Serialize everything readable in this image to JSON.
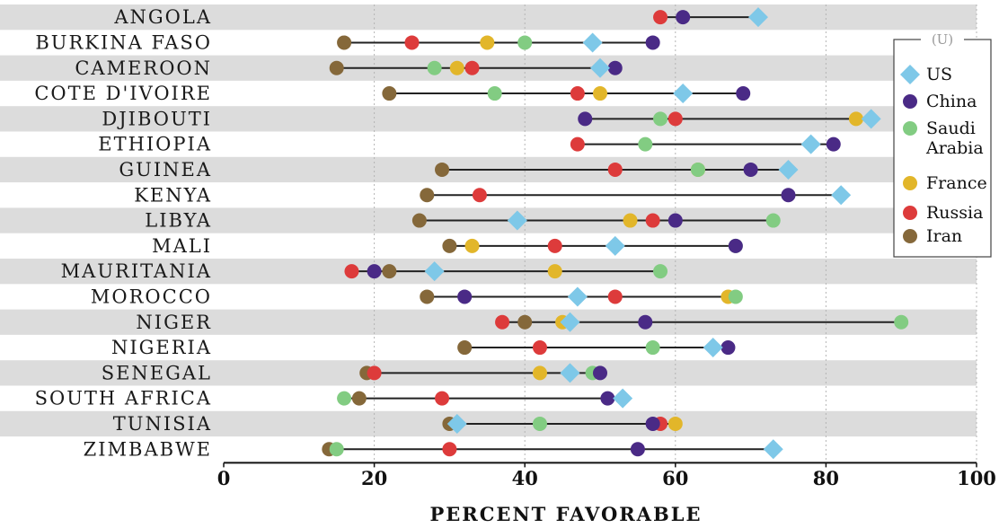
{
  "chart_data": {
    "type": "dot-range",
    "xlabel": "PERCENT FAVORABLE",
    "xlim": [
      0,
      100
    ],
    "xticks": [
      0,
      20,
      40,
      60,
      80,
      100
    ],
    "grid": "vertical dotted",
    "legend_title": "(U)",
    "legend_placement": "right",
    "categories": [
      "ANGOLA",
      "BURKINA FASO",
      "CAMEROON",
      "COTE D'IVOIRE",
      "DJIBOUTI",
      "ETHIOPIA",
      "GUINEA",
      "KENYA",
      "LIBYA",
      "MALI",
      "MAURITANIA",
      "MOROCCO",
      "NIGER",
      "NIGERIA",
      "SENEGAL",
      "SOUTH AFRICA",
      "TUNISIA",
      "ZIMBABWE"
    ],
    "series": [
      {
        "name": "US",
        "label": "US",
        "color": "#7ec8e8",
        "marker": "diamond",
        "values": [
          71,
          49,
          50,
          61,
          86,
          78,
          75,
          82,
          39,
          52,
          28,
          47,
          46,
          65,
          46,
          53,
          31,
          73
        ]
      },
      {
        "name": "China",
        "label": "China",
        "color": "#4a2a86",
        "marker": "circle",
        "values": [
          61,
          57,
          52,
          69,
          48,
          81,
          70,
          75,
          60,
          68,
          20,
          32,
          56,
          67,
          50,
          51,
          57,
          55
        ]
      },
      {
        "name": "Saudi Arabia",
        "label": [
          "Saudi",
          "Arabia"
        ],
        "color": "#82cc82",
        "marker": "circle",
        "values": [
          null,
          40,
          28,
          36,
          58,
          56,
          63,
          null,
          73,
          68,
          58,
          68,
          90,
          57,
          49,
          16,
          42,
          15
        ]
      },
      {
        "name": "France",
        "label": "France",
        "color": "#e2b62a",
        "marker": "circle",
        "values": [
          null,
          35,
          31,
          50,
          84,
          null,
          63,
          null,
          54,
          33,
          44,
          67,
          45,
          null,
          42,
          null,
          60,
          null
        ]
      },
      {
        "name": "Russia",
        "label": "Russia",
        "color": "#dd3b3b",
        "marker": "circle",
        "values": [
          58,
          25,
          33,
          47,
          60,
          47,
          52,
          34,
          57,
          44,
          17,
          52,
          37,
          42,
          20,
          29,
          58,
          30
        ]
      },
      {
        "name": "Iran",
        "label": "Iran",
        "color": "#85683a",
        "marker": "circle",
        "values": [
          null,
          16,
          15,
          22,
          null,
          null,
          29,
          27,
          26,
          30,
          22,
          27,
          40,
          32,
          19,
          18,
          30,
          14
        ]
      }
    ]
  }
}
